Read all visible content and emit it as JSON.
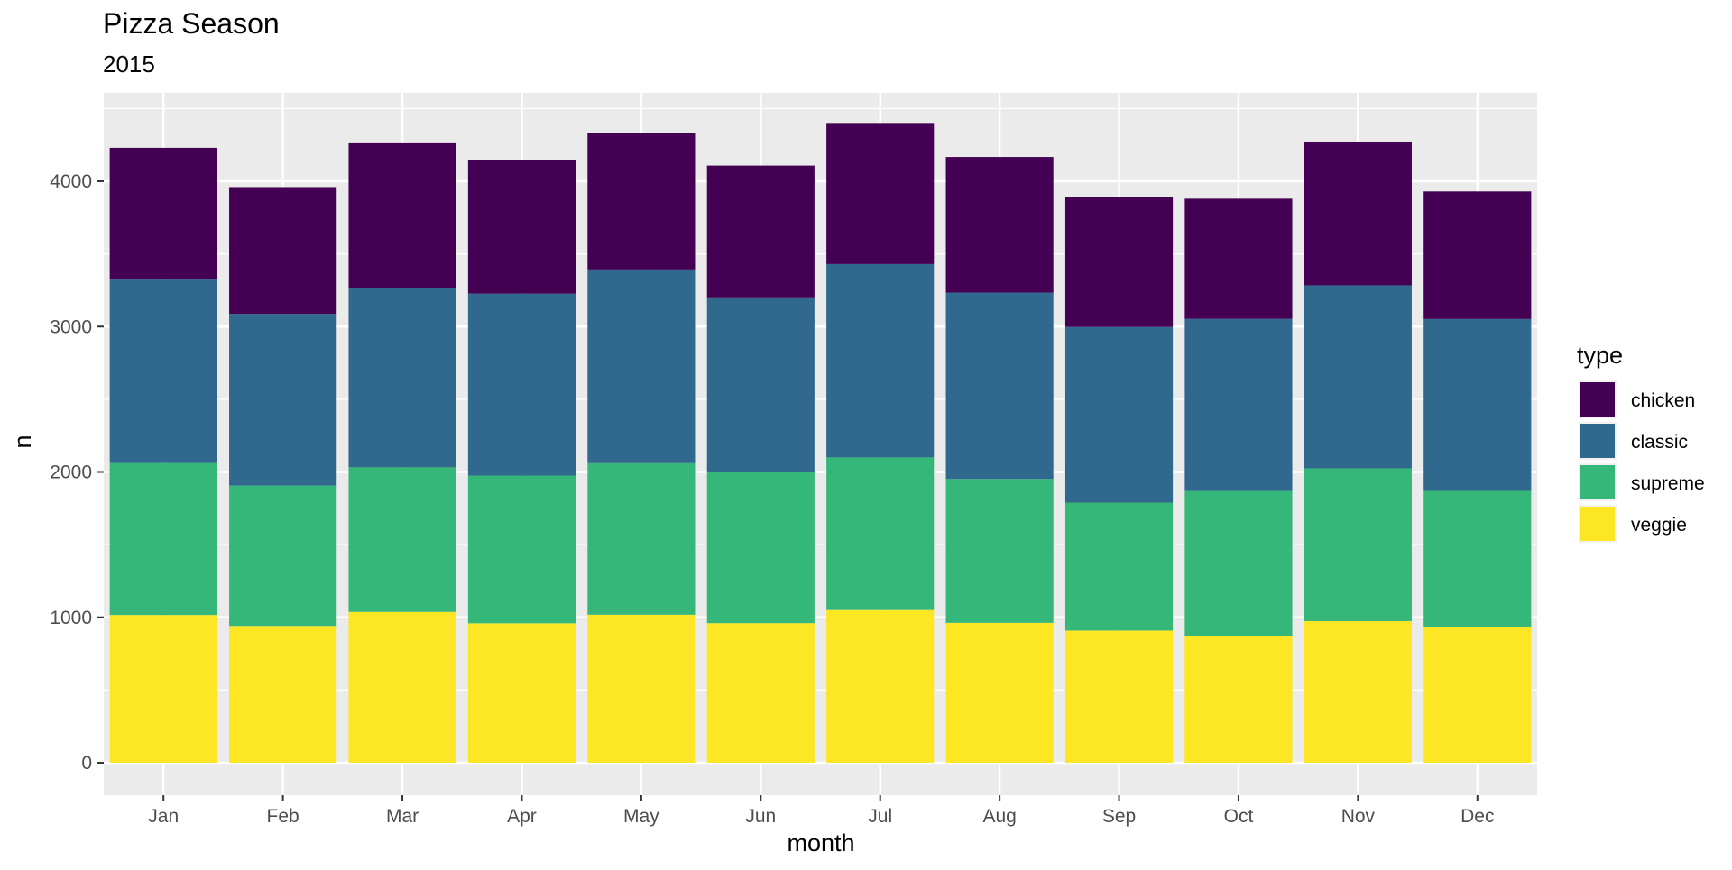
{
  "chart_data": {
    "type": "bar",
    "stacked": true,
    "title": "Pizza Season",
    "subtitle": "2015",
    "xlabel": "month",
    "ylabel": "n",
    "ylim": [
      0,
      4600
    ],
    "yticks": [
      0,
      1000,
      2000,
      3000,
      4000
    ],
    "grid": true,
    "legend_position": "right",
    "legend_title": "type",
    "categories": [
      "Jan",
      "Feb",
      "Mar",
      "Apr",
      "May",
      "Jun",
      "Jul",
      "Aug",
      "Sep",
      "Oct",
      "Nov",
      "Dec"
    ],
    "series": [
      {
        "name": "veggie",
        "color": "#FDE725",
        "values": [
          1016,
          941,
          1037,
          959,
          1018,
          960,
          1050,
          962,
          909,
          872,
          974,
          931
        ]
      },
      {
        "name": "supreme",
        "color": "#35B779",
        "values": [
          1045,
          965,
          995,
          1016,
          1042,
          1041,
          1050,
          990,
          880,
          997,
          1051,
          939
        ]
      },
      {
        "name": "classic",
        "color": "#31688E",
        "values": [
          1262,
          1182,
          1232,
          1252,
          1333,
          1200,
          1330,
          1282,
          1208,
          1184,
          1259,
          1182
        ]
      },
      {
        "name": "chicken",
        "color": "#440154",
        "values": [
          907,
          872,
          997,
          921,
          941,
          907,
          971,
          933,
          894,
          827,
          989,
          878
        ]
      }
    ],
    "legend_order": [
      "chicken",
      "classic",
      "supreme",
      "veggie"
    ],
    "panel_background": "#EBEBEB",
    "grid_color": "#FFFFFF"
  }
}
